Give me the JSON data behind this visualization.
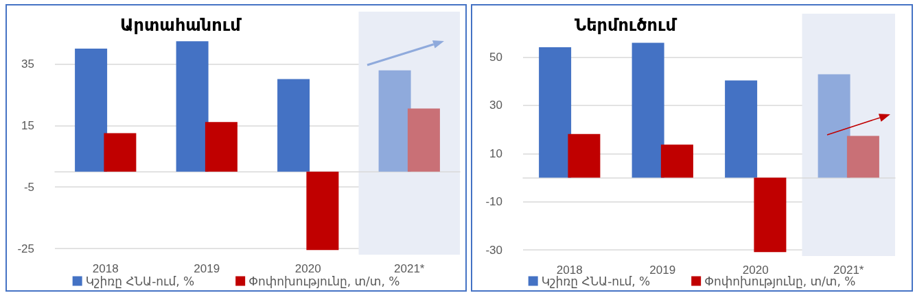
{
  "chart_data": [
    {
      "type": "bar",
      "title": "Արտահանում",
      "categories": [
        "2018",
        "2019",
        "2020",
        "2021*"
      ],
      "series": [
        {
          "name": "Կշիռը ՀՆԱ-ում, %",
          "color": "#4472c4",
          "colors": [
            "#4472c4",
            "#4472c4",
            "#4472c4",
            "#8faadc"
          ],
          "values": [
            40.0,
            42.4,
            30.1,
            32.9
          ]
        },
        {
          "name": "Փոփոխությունը, տ/տ, %",
          "color": "#c00000",
          "colors": [
            "#c00000",
            "#c00000",
            "#c00000",
            "#c97076"
          ],
          "values": [
            12.5,
            16.1,
            -25.5,
            20.5
          ]
        }
      ],
      "ylim": [
        -27,
        52
      ],
      "yticks": [
        -25,
        -5,
        15,
        35
      ],
      "grid": "y",
      "legend": "bottom",
      "bands": [
        {
          "axis": "x",
          "from": "2021*",
          "to": "2021*",
          "color": "#e9edf6"
        }
      ]
    },
    {
      "type": "bar",
      "title": "Ներմուծում",
      "categories": [
        "2018",
        "2019",
        "2020",
        "2021*"
      ],
      "series": [
        {
          "name": "Կշիռը ՀՆԱ-ում, %",
          "color": "#4472c4",
          "colors": [
            "#4472c4",
            "#4472c4",
            "#4472c4",
            "#8faadc"
          ],
          "values": [
            54.1,
            55.9,
            40.3,
            42.9
          ]
        },
        {
          "name": "Փոփոխությունը, տ/տ, %",
          "color": "#c00000",
          "colors": [
            "#c00000",
            "#c00000",
            "#c00000",
            "#c97076"
          ],
          "values": [
            18.1,
            13.7,
            -30.9,
            17.3
          ]
        }
      ],
      "ylim": [
        -32.5,
        68
      ],
      "yticks": [
        -30,
        -10,
        10,
        30,
        50
      ],
      "grid": "y",
      "legend": "bottom",
      "bands": [
        {
          "axis": "x",
          "from": "2021*",
          "to": "2021*",
          "color": "#e9edf6"
        }
      ]
    }
  ]
}
